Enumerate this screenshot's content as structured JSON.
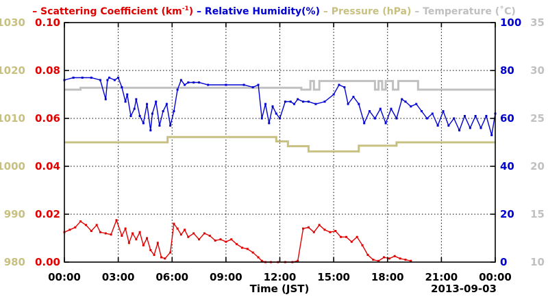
{
  "chart_data": {
    "type": "line",
    "legend": [
      {
        "label": "Scattering Coefficient (km",
        "sup": "-1",
        "close": ")",
        "color": "#e00000"
      },
      {
        "label": "Relative Humidity(%)",
        "sup": "",
        "close": "",
        "color": "#0000d0"
      },
      {
        "label": "Pressure (hPa)",
        "sup": "",
        "close": "",
        "color": "#c8c080"
      },
      {
        "label": "Temperature (˚C)",
        "sup": "",
        "close": "",
        "color": "#c0c0c0"
      }
    ],
    "legend_placement": "top",
    "xlabel": "Time (JST)",
    "date_label": "2013-09-03",
    "grid": true,
    "xlim": [
      0,
      24
    ],
    "x_ticks": [
      {
        "v": 0,
        "label": "00:00"
      },
      {
        "v": 3,
        "label": "03:00"
      },
      {
        "v": 6,
        "label": "06:00"
      },
      {
        "v": 9,
        "label": "09:00"
      },
      {
        "v": 12,
        "label": "12:00"
      },
      {
        "v": 15,
        "label": "15:00"
      },
      {
        "v": 18,
        "label": "18:00"
      },
      {
        "v": 21,
        "label": "21:00"
      },
      {
        "v": 24,
        "label": "00:00"
      }
    ],
    "axes": {
      "pressure": {
        "range": [
          980,
          1030
        ],
        "ticks": [
          "980",
          "990",
          "1000",
          "1010",
          "1020",
          "1030"
        ],
        "color": "#c8c080",
        "side": "left-outer"
      },
      "scattering": {
        "range": [
          0,
          0.1
        ],
        "ticks": [
          "0.00",
          "0.02",
          "0.04",
          "0.06",
          "0.08",
          "0.10"
        ],
        "color": "#e00000",
        "side": "left-inner"
      },
      "humidity": {
        "range": [
          0,
          100
        ],
        "ticks": [
          "0",
          "20",
          "40",
          "60",
          "80",
          "100"
        ],
        "color": "#0000d0",
        "side": "right-inner"
      },
      "temperature": {
        "range": [
          10,
          35
        ],
        "ticks": [
          "10",
          "15",
          "20",
          "25",
          "30",
          "35"
        ],
        "color": "#c0c0c0",
        "side": "right-outer"
      }
    },
    "series": [
      {
        "name": "Pressure (hPa)",
        "axis": "pressure",
        "step": true,
        "x": [
          0,
          5.75,
          11.8,
          12.45,
          13.6,
          16.4,
          18.5,
          24
        ],
        "y": [
          1005,
          1006.1,
          1005.2,
          1004.2,
          1003.1,
          1004.3,
          1005,
          1005
        ]
      },
      {
        "name": "Temperature (˚C)",
        "axis": "temperature",
        "step": true,
        "x": [
          0,
          0.9,
          13.2,
          13.7,
          13.9,
          14.2,
          14.4,
          14.6,
          17.3,
          17.5,
          17.7,
          17.9,
          18.1,
          18.3,
          18.6,
          18.9,
          19.7,
          24
        ],
        "y": [
          28,
          28.2,
          28,
          28.9,
          28,
          28.9,
          28.9,
          28.9,
          28,
          28.9,
          28,
          28.9,
          28.9,
          28,
          28.9,
          28.9,
          28,
          28
        ]
      },
      {
        "name": "Relative Humidity(%)",
        "axis": "humidity",
        "x": [
          0,
          0.5,
          1,
          1.5,
          2,
          2.3,
          2.4,
          2.5,
          2.8,
          3,
          3.2,
          3.4,
          3.5,
          3.7,
          3.9,
          4.0,
          4.2,
          4.4,
          4.6,
          4.8,
          4.9,
          5.1,
          5.3,
          5.5,
          5.7,
          5.9,
          6.1,
          6.3,
          6.5,
          6.7,
          6.9,
          7.2,
          7.5,
          8,
          9,
          10,
          10.5,
          10.8,
          11,
          11.2,
          11.4,
          11.6,
          11.8,
          12,
          12.3,
          12.6,
          12.8,
          13,
          13.3,
          13.6,
          14,
          14.5,
          15,
          15.3,
          15.6,
          15.8,
          16.1,
          16.4,
          16.7,
          17,
          17.3,
          17.6,
          17.9,
          18.2,
          18.5,
          18.8,
          19,
          19.3,
          19.6,
          19.9,
          20.2,
          20.5,
          20.8,
          21.1,
          21.4,
          21.7,
          22,
          22.3,
          22.6,
          22.9,
          23.2,
          23.5,
          23.8,
          24
        ],
        "y": [
          76,
          77,
          77,
          77,
          76,
          68,
          76,
          77,
          76,
          77,
          73,
          67,
          70,
          61,
          64,
          68,
          61,
          58,
          66,
          55,
          62,
          67,
          57,
          63,
          66,
          57,
          63,
          72,
          76,
          74,
          75,
          75,
          75,
          74,
          74,
          74,
          73,
          74,
          60,
          66,
          58,
          65,
          62,
          60,
          67,
          67,
          66,
          68,
          67,
          67,
          66,
          67,
          70,
          74,
          73,
          66,
          69,
          66,
          58,
          63,
          60,
          64,
          58,
          64,
          60,
          68,
          67,
          65,
          66,
          63,
          60,
          62,
          57,
          63,
          57,
          60,
          55,
          61,
          56,
          61,
          56,
          61,
          53,
          62
        ]
      },
      {
        "name": "Scattering Coefficient (km-1)",
        "axis": "scattering",
        "x": [
          0,
          0.3,
          0.6,
          0.9,
          1.2,
          1.5,
          1.8,
          2.0,
          2.3,
          2.6,
          2.9,
          3.2,
          3.4,
          3.6,
          3.8,
          4.0,
          4.2,
          4.4,
          4.6,
          4.8,
          5.0,
          5.2,
          5.4,
          5.6,
          5.9,
          6.1,
          6.3,
          6.5,
          6.7,
          6.9,
          7.2,
          7.5,
          7.8,
          8.1,
          8.4,
          8.7,
          9.0,
          9.3,
          9.6,
          9.9,
          10.2,
          10.5,
          10.8,
          11.0,
          11.2,
          11.5,
          11.9,
          12.3,
          12.7,
          13.0,
          13.3,
          13.6,
          13.9,
          14.2,
          14.5,
          14.8,
          15.1,
          15.4,
          15.7,
          16.0,
          16.3,
          16.6,
          16.9,
          17.2,
          17.5,
          17.8,
          18.1,
          18.4,
          18.7,
          19.0,
          19.3
        ],
        "y": [
          0.0125,
          0.0135,
          0.0145,
          0.017,
          0.0155,
          0.013,
          0.0155,
          0.0125,
          0.012,
          0.0115,
          0.0175,
          0.011,
          0.014,
          0.008,
          0.012,
          0.0095,
          0.0125,
          0.007,
          0.01,
          0.005,
          0.003,
          0.008,
          0.002,
          0.0015,
          0.004,
          0.016,
          0.014,
          0.0115,
          0.0135,
          0.0105,
          0.012,
          0.0095,
          0.012,
          0.011,
          0.009,
          0.0095,
          0.0085,
          0.0095,
          0.0075,
          0.006,
          0.0055,
          0.004,
          0.002,
          0.0005,
          0,
          0,
          0,
          0,
          0,
          0.0005,
          0.014,
          0.0145,
          0.0125,
          0.0155,
          0.0135,
          0.0125,
          0.013,
          0.0105,
          0.0105,
          0.0085,
          0.0105,
          0.007,
          0.003,
          0.001,
          0.0005,
          0.002,
          0.0015,
          0.0025,
          0.0015,
          0.001,
          0.0005
        ]
      }
    ]
  }
}
